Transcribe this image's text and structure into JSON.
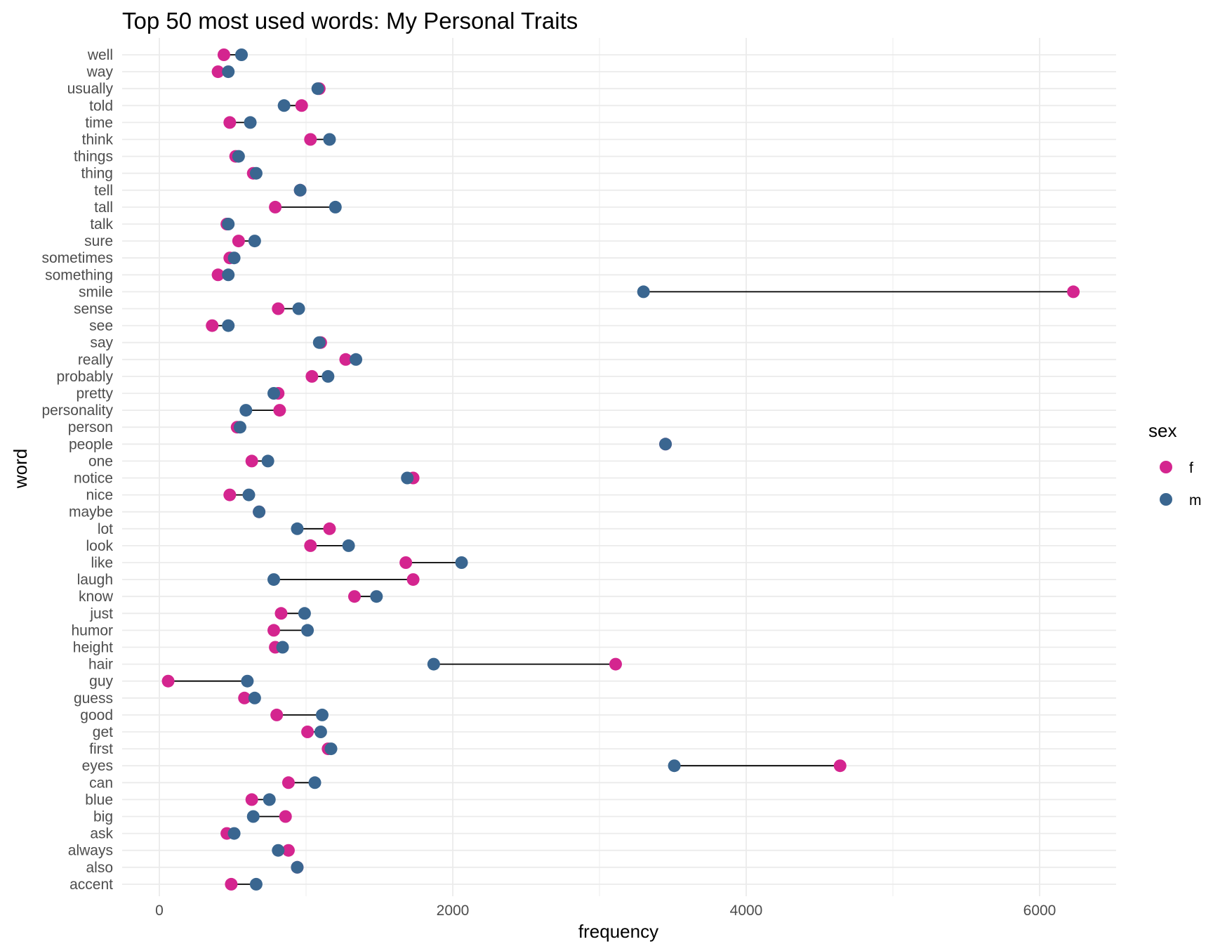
{
  "chart_data": {
    "type": "dumbbell",
    "title": "Top 50 most used words: My Personal Traits",
    "xlabel": "frequency",
    "ylabel": "word",
    "xlim": [
      -250,
      6550
    ],
    "x_ticks": [
      0,
      2000,
      4000,
      6000
    ],
    "x_tick_labels": [
      "0",
      "2000",
      "4000",
      "6000"
    ],
    "grid": true,
    "legend": {
      "title": "sex",
      "position": "right",
      "entries": [
        {
          "label": "f",
          "color": "#d4258f"
        },
        {
          "label": "m",
          "color": "#3a6690"
        }
      ]
    },
    "words": [
      "well",
      "way",
      "usually",
      "told",
      "time",
      "think",
      "things",
      "thing",
      "tell",
      "tall",
      "talk",
      "sure",
      "sometimes",
      "something",
      "smile",
      "sense",
      "see",
      "say",
      "really",
      "probably",
      "pretty",
      "personality",
      "person",
      "people",
      "one",
      "notice",
      "nice",
      "maybe",
      "lot",
      "look",
      "like",
      "laugh",
      "know",
      "just",
      "humor",
      "height",
      "hair",
      "guy",
      "guess",
      "good",
      "get",
      "first",
      "eyes",
      "can",
      "blue",
      "big",
      "ask",
      "always",
      "also",
      "accent"
    ],
    "f": [
      440,
      400,
      1090,
      970,
      480,
      1030,
      520,
      640,
      960,
      790,
      460,
      540,
      480,
      400,
      6230,
      810,
      360,
      1100,
      1270,
      1040,
      810,
      820,
      530,
      3450,
      630,
      1730,
      480,
      680,
      1160,
      1030,
      1680,
      1730,
      1330,
      830,
      780,
      790,
      3110,
      60,
      580,
      800,
      1010,
      1150,
      4640,
      880,
      630,
      860,
      460,
      880,
      940,
      490
    ],
    "m": [
      560,
      470,
      1080,
      850,
      620,
      1160,
      540,
      660,
      960,
      1200,
      470,
      650,
      510,
      470,
      3300,
      950,
      470,
      1090,
      1340,
      1150,
      780,
      590,
      550,
      3450,
      740,
      1690,
      610,
      680,
      940,
      1290,
      2060,
      780,
      1480,
      990,
      1010,
      840,
      1870,
      600,
      650,
      1110,
      1100,
      1170,
      3510,
      1060,
      750,
      640,
      510,
      810,
      940,
      660
    ]
  }
}
